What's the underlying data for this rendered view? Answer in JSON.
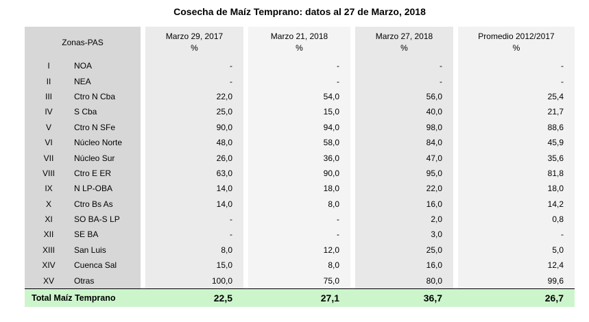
{
  "title": "Cosecha de Maíz Temprano: datos al 27 de Marzo, 2018",
  "table": {
    "zone_header": "Zonas-PAS",
    "columns": [
      {
        "label": "Marzo 29, 2017",
        "unit": "%"
      },
      {
        "label": "Marzo 21, 2018",
        "unit": "%"
      },
      {
        "label": "Marzo 27, 2018",
        "unit": "%"
      },
      {
        "label": "Promedio 2012/2017",
        "unit": "%"
      }
    ],
    "rows": [
      {
        "numeral": "I",
        "zone": "NOA",
        "values": [
          "-",
          "-",
          "-",
          "-"
        ]
      },
      {
        "numeral": "II",
        "zone": "NEA",
        "values": [
          "-",
          "-",
          "-",
          "-"
        ]
      },
      {
        "numeral": "III",
        "zone": "Ctro N Cba",
        "values": [
          "22,0",
          "54,0",
          "56,0",
          "25,4"
        ]
      },
      {
        "numeral": "IV",
        "zone": "S Cba",
        "values": [
          "25,0",
          "15,0",
          "40,0",
          "21,7"
        ]
      },
      {
        "numeral": "V",
        "zone": "Ctro N SFe",
        "values": [
          "90,0",
          "94,0",
          "98,0",
          "88,6"
        ]
      },
      {
        "numeral": "VI",
        "zone": "Núcleo Norte",
        "values": [
          "48,0",
          "58,0",
          "84,0",
          "45,9"
        ]
      },
      {
        "numeral": "VII",
        "zone": "Núcleo Sur",
        "values": [
          "26,0",
          "36,0",
          "47,0",
          "35,6"
        ]
      },
      {
        "numeral": "VIII",
        "zone": "Ctro E ER",
        "values": [
          "63,0",
          "90,0",
          "95,0",
          "81,8"
        ]
      },
      {
        "numeral": "IX",
        "zone": "N LP-OBA",
        "values": [
          "14,0",
          "18,0",
          "22,0",
          "18,0"
        ]
      },
      {
        "numeral": "X",
        "zone": "Ctro Bs As",
        "values": [
          "14,0",
          "8,0",
          "16,0",
          "14,2"
        ]
      },
      {
        "numeral": "XI",
        "zone": "SO BA-S LP",
        "values": [
          "-",
          "-",
          "2,0",
          "0,8"
        ]
      },
      {
        "numeral": "XII",
        "zone": "SE BA",
        "values": [
          "-",
          "-",
          "3,0",
          "-"
        ]
      },
      {
        "numeral": "XIII",
        "zone": "San Luis",
        "values": [
          "8,0",
          "12,0",
          "25,0",
          "5,0"
        ]
      },
      {
        "numeral": "XIV",
        "zone": "Cuenca Sal",
        "values": [
          "15,0",
          "8,0",
          "16,0",
          "12,4"
        ]
      },
      {
        "numeral": "XV",
        "zone": "Otras",
        "values": [
          "100,0",
          "75,0",
          "80,0",
          "99,6"
        ]
      }
    ],
    "total": {
      "label": "Total Maíz Temprano",
      "values": [
        "22,5",
        "27,1",
        "36,7",
        "26,7"
      ]
    }
  },
  "colors": {
    "zone_column_bg": "#d7d7d7",
    "column_bgs": [
      "#ebebeb",
      "#f4f4f4",
      "#e8e8e8",
      "#f2f2f2"
    ],
    "total_row_bg": "#ccf5cc",
    "border": "#000000",
    "text": "#000000"
  }
}
